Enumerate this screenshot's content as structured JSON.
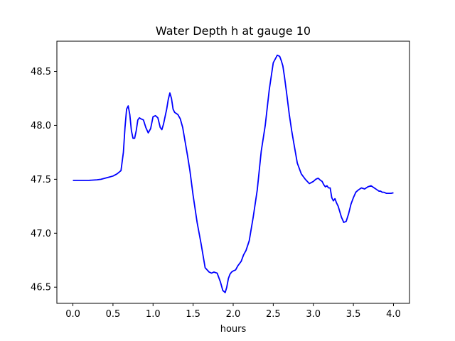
{
  "chart_data": {
    "type": "line",
    "title": "Water Depth h at gauge 10",
    "xlabel": "hours",
    "ylabel": "",
    "xlim": [
      -0.2,
      4.2
    ],
    "ylim": [
      46.35,
      48.78
    ],
    "xticks": [
      0.0,
      0.5,
      1.0,
      1.5,
      2.0,
      2.5,
      3.0,
      3.5,
      4.0
    ],
    "xtick_labels": [
      "0.0",
      "0.5",
      "1.0",
      "1.5",
      "2.0",
      "2.5",
      "3.0",
      "3.5",
      "4.0"
    ],
    "yticks": [
      46.5,
      47.0,
      47.5,
      48.0,
      48.5
    ],
    "ytick_labels": [
      "46.5",
      "47.0",
      "47.5",
      "48.0",
      "48.5"
    ],
    "grid": false,
    "series": [
      {
        "color": "#0000ff",
        "x": [
          0.0,
          0.1,
          0.2,
          0.3,
          0.35,
          0.4,
          0.45,
          0.5,
          0.55,
          0.6,
          0.63,
          0.65,
          0.67,
          0.69,
          0.71,
          0.73,
          0.75,
          0.77,
          0.79,
          0.81,
          0.83,
          0.85,
          0.88,
          0.91,
          0.94,
          0.97,
          1.0,
          1.03,
          1.06,
          1.09,
          1.11,
          1.13,
          1.15,
          1.17,
          1.19,
          1.21,
          1.23,
          1.25,
          1.27,
          1.29,
          1.31,
          1.34,
          1.37,
          1.4,
          1.43,
          1.46,
          1.5,
          1.55,
          1.6,
          1.65,
          1.7,
          1.73,
          1.76,
          1.8,
          1.84,
          1.87,
          1.9,
          1.92,
          1.94,
          1.96,
          1.98,
          2.0,
          2.03,
          2.06,
          2.1,
          2.13,
          2.16,
          2.2,
          2.25,
          2.3,
          2.35,
          2.4,
          2.45,
          2.5,
          2.55,
          2.58,
          2.6,
          2.62,
          2.64,
          2.67,
          2.7,
          2.73,
          2.76,
          2.8,
          2.85,
          2.9,
          2.95,
          3.0,
          3.03,
          3.06,
          3.09,
          3.11,
          3.13,
          3.15,
          3.17,
          3.19,
          3.21,
          3.23,
          3.25,
          3.27,
          3.29,
          3.31,
          3.33,
          3.35,
          3.38,
          3.41,
          3.44,
          3.47,
          3.5,
          3.53,
          3.56,
          3.6,
          3.64,
          3.68,
          3.72,
          3.76,
          3.8,
          3.82,
          3.84,
          3.86,
          3.88,
          3.91,
          3.94,
          3.97,
          4.0
        ],
        "y": [
          47.49,
          47.49,
          47.49,
          47.495,
          47.5,
          47.51,
          47.52,
          47.53,
          47.55,
          47.58,
          47.75,
          47.98,
          48.15,
          48.18,
          48.1,
          47.95,
          47.88,
          47.88,
          47.95,
          48.05,
          48.07,
          48.06,
          48.05,
          47.98,
          47.93,
          47.97,
          48.08,
          48.09,
          48.07,
          47.98,
          47.96,
          48.01,
          48.08,
          48.15,
          48.24,
          48.3,
          48.25,
          48.15,
          48.12,
          48.11,
          48.1,
          48.06,
          47.98,
          47.85,
          47.72,
          47.58,
          47.35,
          47.1,
          46.9,
          46.68,
          46.64,
          46.63,
          46.64,
          46.63,
          46.55,
          46.47,
          46.45,
          46.5,
          46.58,
          46.62,
          46.64,
          46.65,
          46.66,
          46.7,
          46.74,
          46.8,
          46.84,
          46.93,
          47.15,
          47.4,
          47.76,
          48.0,
          48.33,
          48.58,
          48.65,
          48.64,
          48.6,
          48.55,
          48.45,
          48.28,
          48.1,
          47.95,
          47.82,
          47.65,
          47.55,
          47.5,
          47.46,
          47.48,
          47.5,
          47.51,
          47.49,
          47.48,
          47.45,
          47.43,
          47.44,
          47.42,
          47.42,
          47.33,
          47.3,
          47.32,
          47.28,
          47.25,
          47.2,
          47.15,
          47.1,
          47.11,
          47.18,
          47.27,
          47.33,
          47.38,
          47.4,
          47.42,
          47.41,
          47.43,
          47.44,
          47.42,
          47.4,
          47.39,
          47.39,
          47.38,
          47.38,
          47.37,
          47.37,
          47.37,
          47.375
        ]
      }
    ]
  }
}
